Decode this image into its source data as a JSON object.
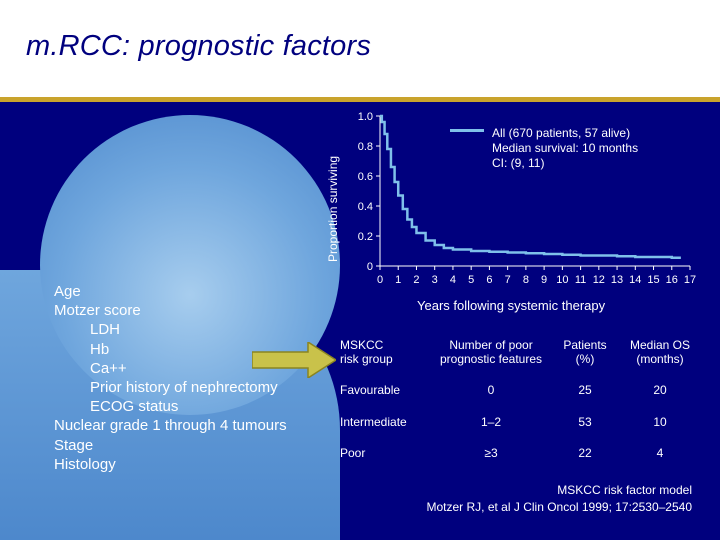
{
  "slide": {
    "title": "m.RCC: prognostic factors",
    "colors": {
      "background": "#00007e",
      "accent": "#c9a32c",
      "curve": "#7fc0ea",
      "arrow": "#c9c24a"
    }
  },
  "factors": [
    "Age",
    "Motzer score",
    "LDH",
    "Hb",
    "Ca++",
    "Prior history of nephrectomy",
    "ECOG status",
    "Nuclear grade 1 through 4 tumours",
    "Stage",
    "Histology"
  ],
  "chart_data": {
    "type": "line",
    "title": "",
    "xlabel": "Years following systemic therapy",
    "ylabel": "Proportion surviving",
    "xlim": [
      0,
      17
    ],
    "ylim": [
      0,
      1
    ],
    "x_ticks": [
      "0",
      "1",
      "2",
      "3",
      "4",
      "5",
      "6",
      "7",
      "8",
      "9",
      "10",
      "11",
      "12",
      "13",
      "14",
      "15",
      "16",
      "17"
    ],
    "y_ticks": [
      {
        "value": 0,
        "label": "0"
      },
      {
        "value": 0.2,
        "label": "0.2"
      },
      {
        "value": 0.4,
        "label": "0.4"
      },
      {
        "value": 0.6,
        "label": "0.6"
      },
      {
        "value": 0.8,
        "label": "0.8"
      },
      {
        "value": 1.0,
        "label": "1.0"
      }
    ],
    "series": [
      {
        "name": "All (670 patients, 57 alive)",
        "x": [
          0,
          0.1,
          0.25,
          0.4,
          0.6,
          0.8,
          1.0,
          1.25,
          1.5,
          1.75,
          2.0,
          2.5,
          3.0,
          3.5,
          4.0,
          5.0,
          6.0,
          7.0,
          8.0,
          9.0,
          10.0,
          11.0,
          12.0,
          13.0,
          14.0,
          15.0,
          16.0,
          16.5
        ],
        "y": [
          1.0,
          0.96,
          0.88,
          0.78,
          0.66,
          0.56,
          0.47,
          0.38,
          0.31,
          0.26,
          0.22,
          0.17,
          0.14,
          0.12,
          0.11,
          0.1,
          0.095,
          0.09,
          0.085,
          0.08,
          0.075,
          0.07,
          0.07,
          0.065,
          0.06,
          0.06,
          0.055,
          0.055
        ]
      }
    ],
    "legend": {
      "line1": "All (670 patients, 57 alive)",
      "line2": "Median survival: 10 months",
      "line3": "CI: (9, 11)",
      "position": "top-right"
    }
  },
  "table": {
    "headers": {
      "group": "MSKCC\nrisk group",
      "features": "Number of poor\nprognostic features",
      "patients": "Patients\n(%)",
      "median": "Median OS\n(months)"
    },
    "rows": [
      {
        "group": "Favourable",
        "features": "0",
        "patients": "25",
        "median": "20"
      },
      {
        "group": "Intermediate",
        "features": "1–2",
        "patients": "53",
        "median": "10"
      },
      {
        "group": "Poor",
        "features": "≥3",
        "patients": "22",
        "median": "4"
      }
    ]
  },
  "footnote": {
    "line1": "MSKCC risk factor model",
    "line2": "Motzer RJ, et al J Clin Oncol 1999; 17:2530–2540"
  }
}
